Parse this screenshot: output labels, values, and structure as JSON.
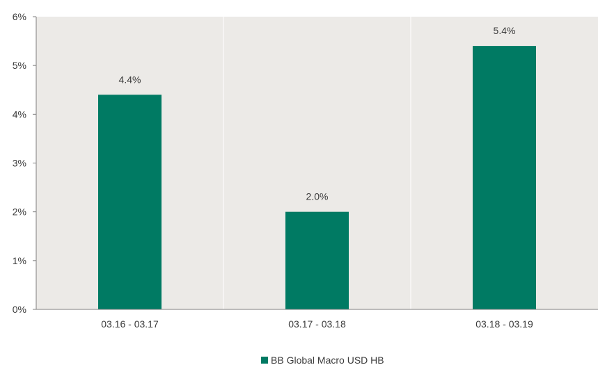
{
  "chart_data": {
    "type": "bar",
    "categories": [
      "03.16 - 03.17",
      "03.17 - 03.18",
      "03.18 - 03.19"
    ],
    "series": [
      {
        "name": "BB Global Macro USD HB",
        "values": [
          4.4,
          2.0,
          5.4
        ],
        "data_labels": [
          "4.4%",
          "2.0%",
          "5.4%"
        ]
      }
    ],
    "y_ticks": [
      {
        "value": 0,
        "label": "0%"
      },
      {
        "value": 1,
        "label": "1%"
      },
      {
        "value": 2,
        "label": "2%"
      },
      {
        "value": 3,
        "label": "3%"
      },
      {
        "value": 4,
        "label": "4%"
      },
      {
        "value": 5,
        "label": "5%"
      },
      {
        "value": 6,
        "label": "6%"
      }
    ],
    "ylim": [
      0,
      6
    ],
    "title": "",
    "xlabel": "",
    "ylabel": "",
    "grid": false,
    "category_separators": true,
    "legend_position": "bottom-center",
    "colors": {
      "bar": "#007A63",
      "plot_background": "#ECEAE7",
      "axis": "#7F7F7F",
      "separator": "#FFFFFF",
      "text": "#3A3A3A"
    }
  }
}
